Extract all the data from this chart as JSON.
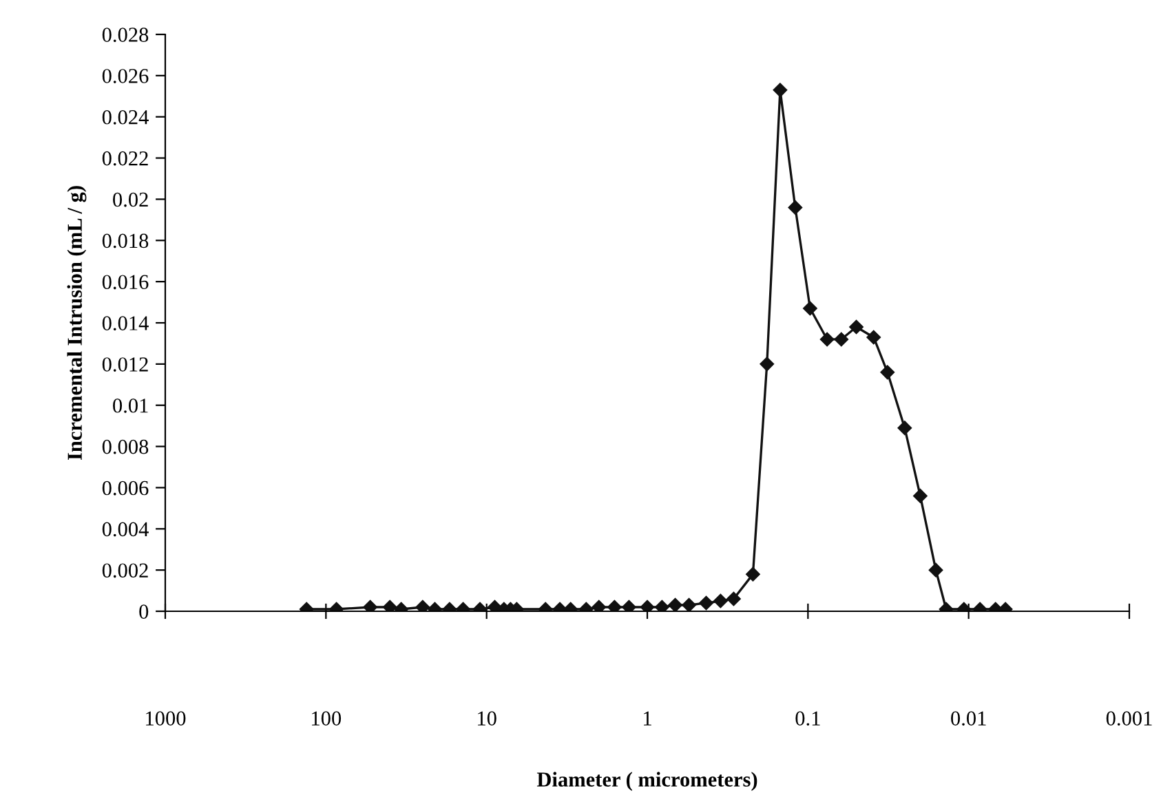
{
  "chart_data": {
    "type": "line",
    "xlabel": "Diameter ( micrometers)",
    "ylabel": "Incremental Intrusion (mL / g)",
    "log": "x",
    "xlim": [
      1000,
      0.001
    ],
    "xticks": [
      1000,
      100,
      10,
      1,
      0.1,
      0.01,
      0.001
    ],
    "ylim": [
      0,
      0.028
    ],
    "yticks": [
      0,
      0.002,
      0.004,
      0.006,
      0.008,
      0.01,
      0.012,
      0.014,
      0.016,
      0.018,
      0.02,
      0.022,
      0.024,
      0.026,
      0.028
    ],
    "grid": false,
    "legend": false,
    "marker": "diamond",
    "line_style": "solid",
    "series": [
      {
        "color": "#111111",
        "x": [
          132,
          86,
          53,
          40,
          34,
          25,
          21,
          17,
          14,
          11,
          8.9,
          7.8,
          7.1,
          6.5,
          4.3,
          3.5,
          3.0,
          2.4,
          2.0,
          1.6,
          1.3,
          1.0,
          0.81,
          0.67,
          0.55,
          0.43,
          0.35,
          0.29,
          0.22,
          0.18,
          0.149,
          0.12,
          0.097,
          0.076,
          0.062,
          0.05,
          0.039,
          0.032,
          0.025,
          0.02,
          0.016,
          0.0138,
          0.0107,
          0.0085,
          0.0068,
          0.0059
        ],
        "values": [
          0.0001,
          0.0001,
          0.0002,
          0.0002,
          0.0001,
          0.0002,
          0.0001,
          0.0001,
          0.0001,
          0.0001,
          0.0002,
          0.0001,
          0.0001,
          0.0001,
          0.0001,
          0.0001,
          0.0001,
          0.0001,
          0.0002,
          0.0002,
          0.0002,
          0.0002,
          0.0002,
          0.0003,
          0.0003,
          0.0004,
          0.0005,
          0.0006,
          0.0018,
          0.012,
          0.0253,
          0.0196,
          0.0147,
          0.0132,
          0.0132,
          0.0138,
          0.0133,
          0.0116,
          0.0089,
          0.0056,
          0.002,
          0.0001,
          0.0001,
          0.0001,
          0.0001,
          0.0001
        ]
      }
    ]
  }
}
